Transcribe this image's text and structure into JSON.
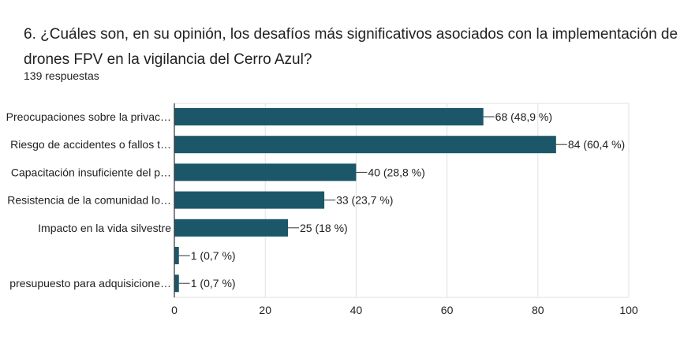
{
  "question": {
    "title": "6. ¿Cuáles son, en su opinión, los desafíos más significativos asociados con la implementación de drones FPV en la vigilancia del Cerro Azul?",
    "responses": "139 respuestas"
  },
  "colors": {
    "bar": "#1b5769",
    "grid": "#e0e0e0",
    "axis": "#333333",
    "text": "#202124"
  },
  "chart_data": {
    "type": "bar",
    "orientation": "horizontal",
    "categories": [
      "Preocupaciones sobre la privac…",
      "Riesgo de accidentes o fallos t…",
      "Capacitación insuficiente del p…",
      "Resistencia de la comunidad lo…",
      "Impacto en la vida silvestre",
      "",
      "presupuesto para adquisicione…"
    ],
    "values": [
      68,
      84,
      40,
      33,
      25,
      1,
      1
    ],
    "data_labels": [
      "68 (48,9 %)",
      "84 (60,4 %)",
      "40 (28,8 %)",
      "33 (23,7 %)",
      "25 (18 %)",
      "1 (0,7 %)",
      "1 (0,7 %)"
    ],
    "xlim": [
      0,
      100
    ],
    "xticks": [
      0,
      20,
      40,
      60,
      80,
      100
    ],
    "grid": true
  }
}
